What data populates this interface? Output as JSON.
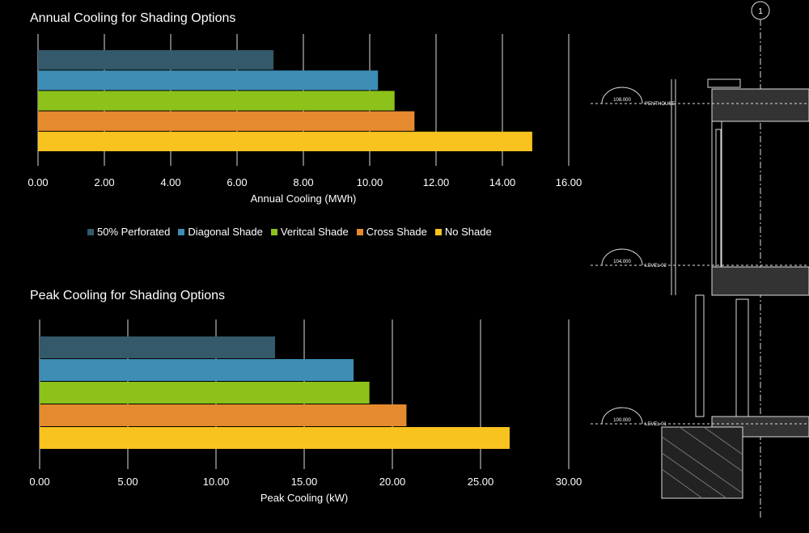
{
  "series_colors": [
    "#34596a",
    "#3e8db5",
    "#8cc21a",
    "#e58a2e",
    "#f8c21f"
  ],
  "legend": [
    "50% Perforated",
    "Diagonal Shade",
    "Veritcal Shade",
    "Cross Shade",
    "No Shade"
  ],
  "chart_data": [
    {
      "type": "bar",
      "orientation": "horizontal",
      "title": "Annual Cooling for Shading Options",
      "xlabel": "Annual Cooling (MWh)",
      "ylabel": "",
      "categories": [
        "50% Perforated",
        "Diagonal Shade",
        "Veritcal Shade",
        "Cross Shade",
        "No Shade"
      ],
      "values": [
        7.1,
        10.25,
        10.75,
        11.35,
        14.9
      ],
      "xlim": [
        0,
        16
      ],
      "ticks": [
        "0.00",
        "2.00",
        "4.00",
        "6.00",
        "8.00",
        "10.00",
        "12.00",
        "14.00",
        "16.00"
      ],
      "grid": true,
      "legend": "bottom"
    },
    {
      "type": "bar",
      "orientation": "horizontal",
      "title": "Peak Cooling for Shading Options",
      "xlabel": "Peak Cooling (kW)",
      "ylabel": "",
      "categories": [
        "50% Perforated",
        "Diagonal Shade",
        "Veritcal Shade",
        "Cross Shade",
        "No Shade"
      ],
      "values": [
        13.35,
        17.8,
        18.7,
        20.8,
        26.65
      ],
      "xlim": [
        0,
        30
      ],
      "ticks": [
        "0.00",
        "5.00",
        "10.00",
        "15.00",
        "20.00",
        "25.00",
        "30.00"
      ],
      "grid": true,
      "legend": "bottom"
    }
  ],
  "drawing": {
    "grid_bubble": "1",
    "levels": [
      {
        "elev": "108.000",
        "name": "PENTHOUSE"
      },
      {
        "elev": "104.000",
        "name": "LEVEL 02"
      },
      {
        "elev": "100.000",
        "name": "LEVEL 01"
      }
    ]
  }
}
